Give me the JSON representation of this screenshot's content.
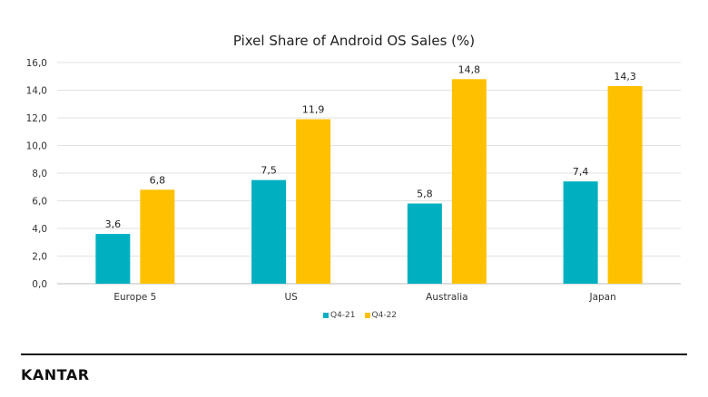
{
  "chart_data": {
    "type": "bar",
    "title": "Pixel Share of Android OS Sales (%)",
    "categories": [
      "Europe 5",
      "US",
      "Australia",
      "Japan"
    ],
    "series": [
      {
        "name": "Q4-21",
        "color": "#00b0c0",
        "values": [
          3.6,
          7.5,
          5.8,
          7.4
        ],
        "labels": [
          "3,6",
          "7,5",
          "5,8",
          "7,4"
        ]
      },
      {
        "name": "Q4-22",
        "color": "#ffc000",
        "values": [
          6.8,
          11.9,
          14.8,
          14.3
        ],
        "labels": [
          "6,8",
          "11,9",
          "14,8",
          "14,3"
        ]
      }
    ],
    "ylim": [
      0,
      16
    ],
    "yticks": [
      "0,0",
      "2,0",
      "4,0",
      "6,0",
      "8,0",
      "10,0",
      "12,0",
      "14,0",
      "16,0"
    ],
    "grid": true,
    "legend_position": "bottom"
  },
  "footer": {
    "logo": "KANTAR"
  }
}
